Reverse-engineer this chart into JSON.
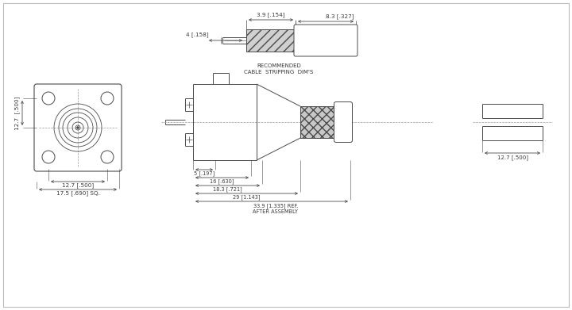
{
  "bg_color": "#ffffff",
  "line_color": "#4a4a4a",
  "text_color": "#3a3a3a",
  "dim_color": "#3a3a3a",
  "cable_label_line1": "RECOMMENDED",
  "cable_label_line2": "CABLE  STRIPPING  DIM'S",
  "dim_3_9": "3.9 [.154]",
  "dim_8_3": "8.3 [.327]",
  "dim_4": "4 [.158]",
  "dim_127_v": "12.7  [.500]",
  "dim_127_h": "12.7 [.500]",
  "dim_175": "17.5 [.690] SQ.",
  "dim_5": "5 [.197]",
  "dim_16": "16 [.630]",
  "dim_183": "18.3 [.721]",
  "dim_29": "29 [1.143]",
  "dim_339_line1": "33.9 [1.335] REF.",
  "dim_339_line2": "AFTER ASSEMBLY",
  "dim_127_side": "12.7 [.500]",
  "hatch_color": "#aaaaaa",
  "knurl_color": "#bbbbbb"
}
